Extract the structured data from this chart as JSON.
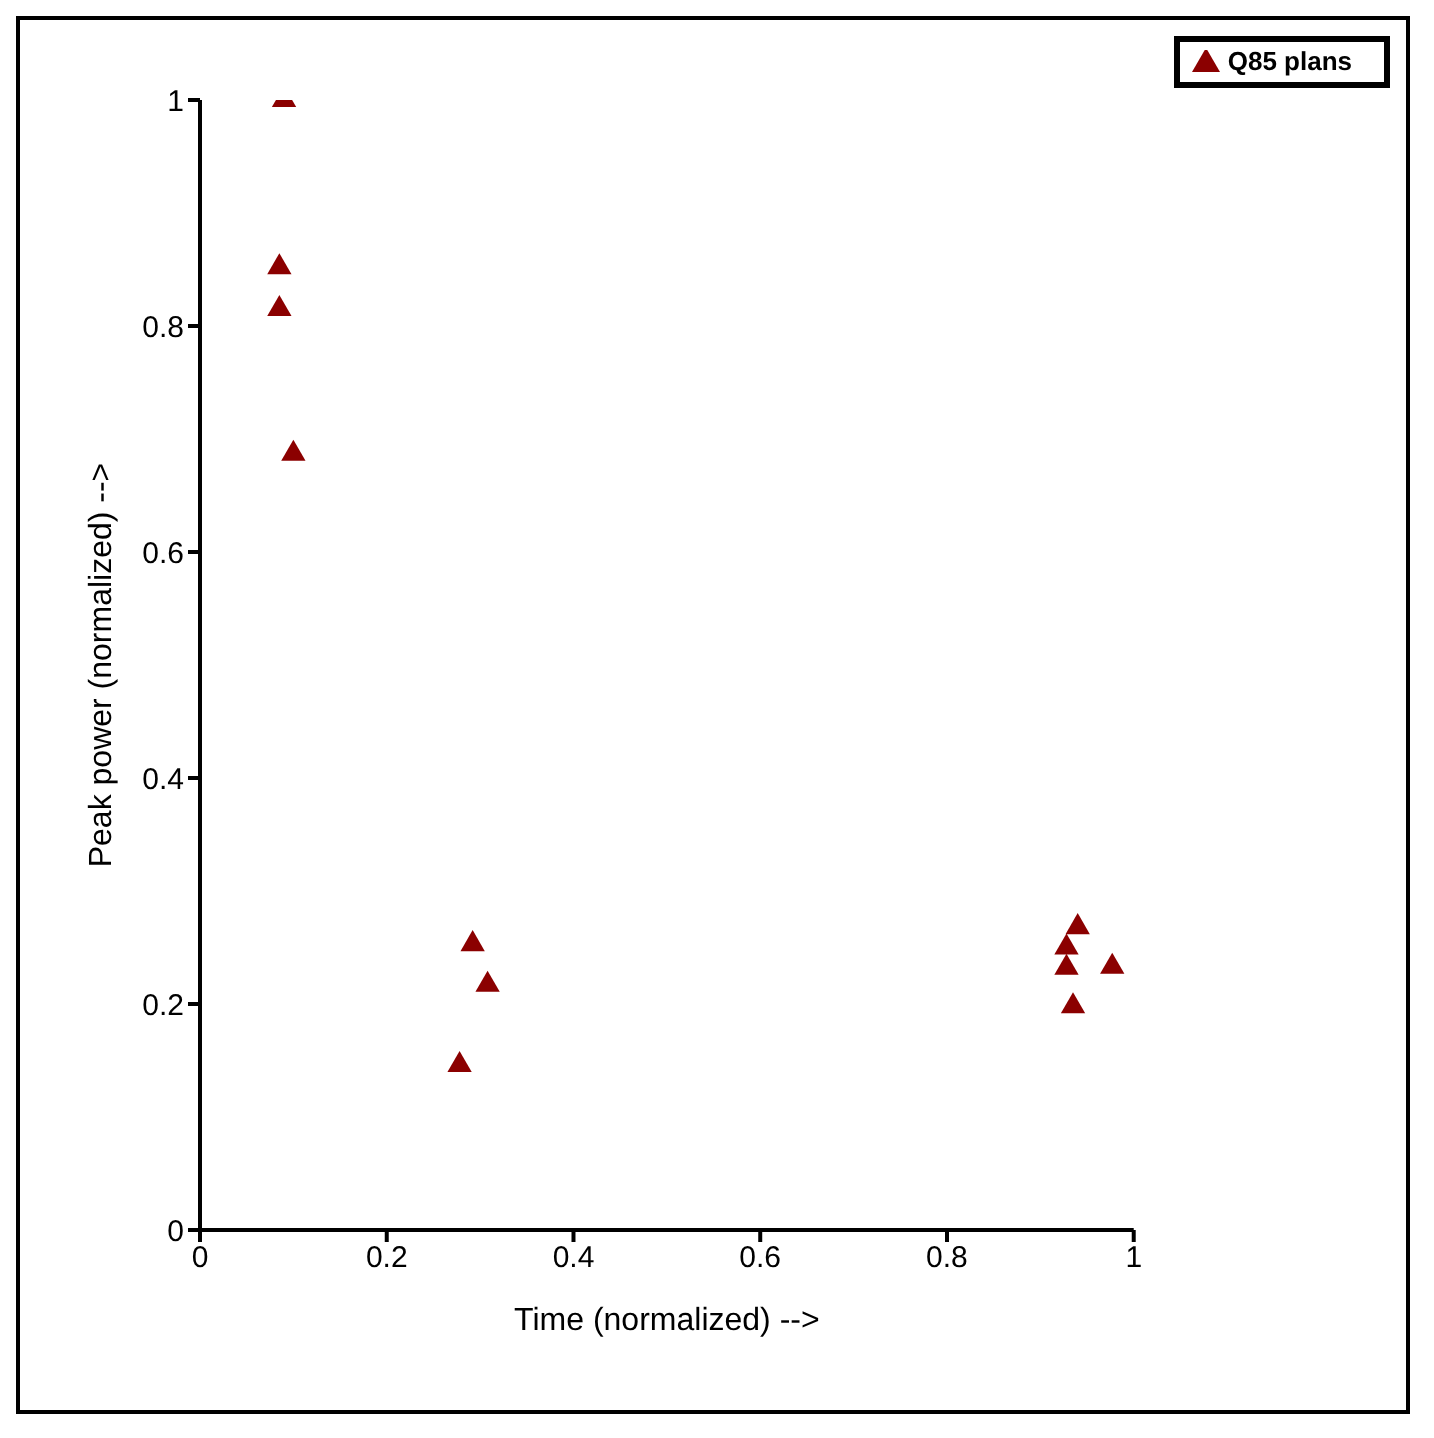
{
  "chart_data": {
    "type": "scatter",
    "xlabel": "Time (normalized) -->",
    "ylabel": "Peak power (normalized) -->",
    "xlim": [
      0,
      1
    ],
    "ylim": [
      0,
      1
    ],
    "xticks": [
      0,
      0.2,
      0.4,
      0.6,
      0.8,
      1
    ],
    "yticks": [
      0,
      0.2,
      0.4,
      0.6,
      0.8,
      1
    ],
    "grid": false,
    "legend": "top right",
    "marker": "triangle",
    "series": [
      {
        "name": "Q85 plans",
        "color": "#8b0000",
        "x": [
          0.09,
          0.085,
          0.085,
          0.1,
          0.292,
          0.308,
          0.278,
          0.94,
          0.928,
          0.928,
          0.935,
          0.977
        ],
        "values": [
          1.0,
          0.852,
          0.815,
          0.687,
          0.253,
          0.217,
          0.146,
          0.268,
          0.25,
          0.232,
          0.198,
          0.233
        ]
      }
    ]
  }
}
